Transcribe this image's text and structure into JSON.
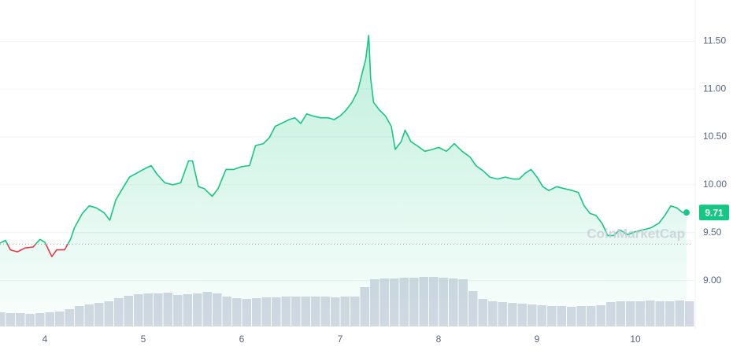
{
  "chart_data": {
    "type": "line",
    "watermark": "CoinMarketCap",
    "xlim": [
      3.544,
      10.584
    ],
    "xticks": [
      4,
      5,
      6,
      7,
      8,
      9,
      10
    ],
    "ylim": [
      8.52,
      11.93
    ],
    "yticks": [
      {
        "value": 9,
        "label": "9.00"
      },
      {
        "value": 9.5,
        "label": "9.50"
      },
      {
        "value": 10,
        "label": "10.00"
      },
      {
        "value": 10.5,
        "label": "10.50"
      },
      {
        "value": 11,
        "label": "11.00"
      },
      {
        "value": 11.5,
        "label": "11.50"
      }
    ],
    "y2lim": [
      0,
      100
    ],
    "grid": true,
    "baseline": 9.38,
    "up_color": "#16c784",
    "down_color": "#ea3943",
    "series": [
      {
        "x": [
          3.544,
          3.6,
          3.65,
          3.72,
          3.8,
          3.88,
          3.95,
          4.0,
          4.07,
          4.12,
          4.2,
          4.26,
          4.3,
          4.38,
          4.45,
          4.52,
          4.6,
          4.66,
          4.72,
          4.8,
          4.86,
          4.93,
          5.0,
          5.08,
          5.14,
          5.22,
          5.3,
          5.38,
          5.46,
          5.5,
          5.56,
          5.62,
          5.7,
          5.76,
          5.84,
          5.92,
          6.0,
          6.08,
          6.14,
          6.22,
          6.28,
          6.34,
          6.42,
          6.48,
          6.54,
          6.6,
          6.66,
          6.72,
          6.8,
          6.88,
          6.94,
          7.0,
          7.06,
          7.12,
          7.18,
          7.22,
          7.26,
          7.29,
          7.31,
          7.34,
          7.4,
          7.46,
          7.52,
          7.56,
          7.62,
          7.66,
          7.72,
          7.78,
          7.86,
          7.94,
          8.0,
          8.08,
          8.16,
          8.24,
          8.32,
          8.38,
          8.46,
          8.52,
          8.6,
          8.68,
          8.76,
          8.82,
          8.88,
          8.94,
          9.0,
          9.06,
          9.12,
          9.2,
          9.28,
          9.36,
          9.42,
          9.48,
          9.54,
          9.6,
          9.66,
          9.72,
          9.78,
          9.84,
          9.92,
          10.0,
          10.08,
          10.16,
          10.24,
          10.3,
          10.36,
          10.42,
          10.48,
          10.52
        ],
        "values": [
          9.39,
          9.42,
          9.32,
          9.3,
          9.34,
          9.35,
          9.43,
          9.4,
          9.25,
          9.32,
          9.32,
          9.43,
          9.55,
          9.7,
          9.78,
          9.76,
          9.71,
          9.63,
          9.84,
          9.98,
          10.08,
          10.12,
          10.16,
          10.2,
          10.11,
          10.02,
          10.0,
          10.02,
          10.25,
          10.25,
          9.98,
          9.96,
          9.88,
          9.96,
          10.16,
          10.16,
          10.19,
          10.2,
          10.41,
          10.43,
          10.49,
          10.61,
          10.65,
          10.68,
          10.7,
          10.64,
          10.74,
          10.72,
          10.7,
          10.7,
          10.68,
          10.72,
          10.78,
          10.86,
          10.98,
          11.15,
          11.31,
          11.56,
          11.11,
          10.86,
          10.78,
          10.72,
          10.61,
          10.37,
          10.45,
          10.57,
          10.45,
          10.41,
          10.35,
          10.37,
          10.39,
          10.35,
          10.43,
          10.35,
          10.29,
          10.2,
          10.14,
          10.08,
          10.06,
          10.08,
          10.06,
          10.06,
          10.12,
          10.16,
          10.08,
          9.98,
          9.94,
          9.98,
          9.96,
          9.94,
          9.92,
          9.78,
          9.7,
          9.68,
          9.6,
          9.47,
          9.47,
          9.53,
          9.48,
          9.51,
          9.53,
          9.55,
          9.6,
          9.68,
          9.78,
          9.76,
          9.71,
          9.71
        ]
      },
      {
        "axis": "y2",
        "color": "#d4d8e4",
        "x": [
          3.55,
          3.65,
          3.75,
          3.85,
          3.95,
          4.05,
          4.15,
          4.25,
          4.35,
          4.45,
          4.55,
          4.65,
          4.75,
          4.85,
          4.95,
          5.05,
          5.15,
          5.25,
          5.35,
          5.45,
          5.55,
          5.65,
          5.75,
          5.85,
          5.95,
          6.05,
          6.15,
          6.25,
          6.35,
          6.45,
          6.55,
          6.65,
          6.75,
          6.85,
          6.95,
          7.05,
          7.15,
          7.25,
          7.35,
          7.45,
          7.55,
          7.65,
          7.75,
          7.85,
          7.95,
          8.05,
          8.15,
          8.25,
          8.35,
          8.45,
          8.55,
          8.65,
          8.75,
          8.85,
          8.95,
          9.05,
          9.15,
          9.25,
          9.35,
          9.45,
          9.55,
          9.65,
          9.75,
          9.85,
          9.95,
          10.05,
          10.15,
          10.25,
          10.35,
          10.45,
          10.55
        ],
        "values": [
          18,
          17,
          17,
          16,
          17,
          18,
          19,
          22,
          26,
          28,
          30,
          32,
          36,
          39,
          41,
          42,
          42,
          43,
          40,
          41,
          42,
          44,
          42,
          38,
          36,
          35,
          36,
          37,
          37,
          38,
          38,
          38,
          38,
          38,
          37,
          38,
          38,
          50,
          60,
          61,
          61,
          62,
          62,
          63,
          63,
          62,
          61,
          60,
          45,
          35,
          32,
          31,
          30,
          29,
          28,
          27,
          26,
          26,
          25,
          26,
          26,
          27,
          31,
          32,
          32,
          32,
          33,
          32,
          32,
          33,
          32
        ]
      }
    ]
  }
}
